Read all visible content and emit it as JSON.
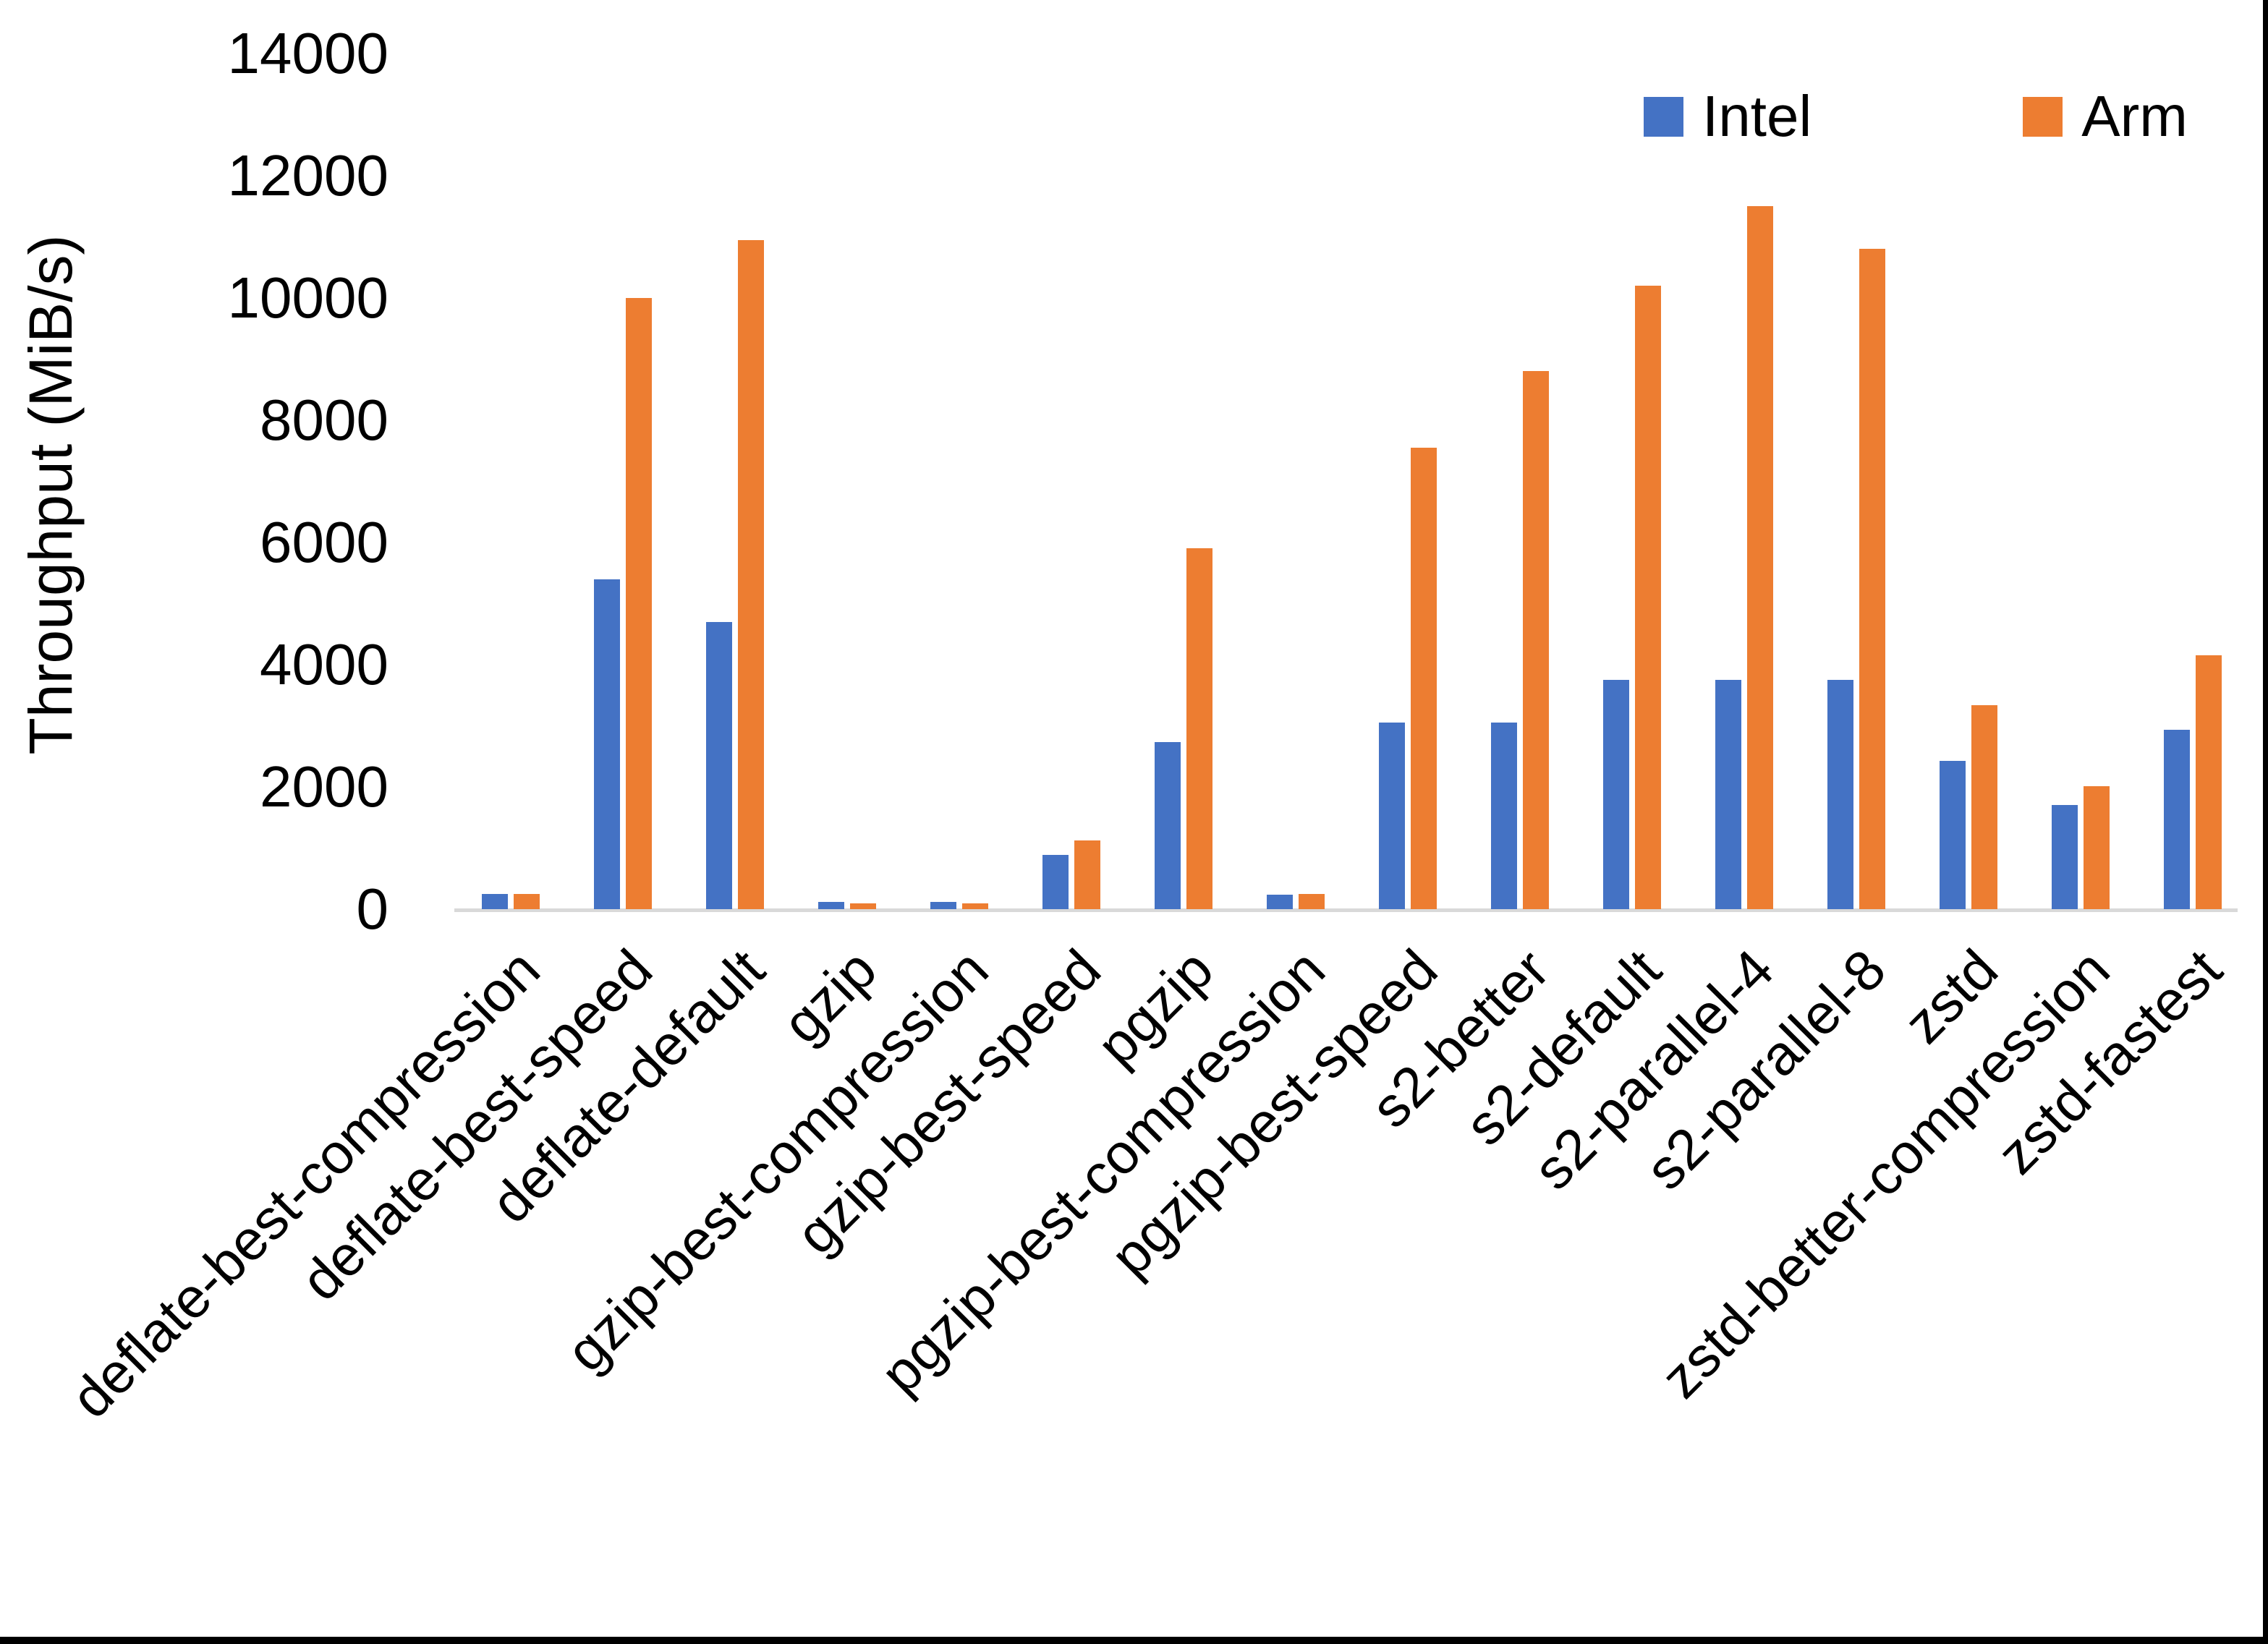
{
  "chart_data": {
    "type": "bar",
    "title": "",
    "xlabel": "",
    "ylabel": "Throughput (MiB/s)",
    "ylim": [
      0,
      14000
    ],
    "y_tick_step": 2000,
    "y_tick_labels": [
      "0",
      "2000",
      "4000",
      "6000",
      "8000",
      "10000",
      "12000",
      "14000"
    ],
    "grid": false,
    "legend_position": "top-right",
    "categories": [
      "deflate-best-compression",
      "deflate-best-speed",
      "deflate-default",
      "gzip",
      "gzip-best-compression",
      "gzip-best-speed",
      "pgzip",
      "pgzip-best-compression",
      "pgzip-best-speed",
      "s2-better",
      "s2-default",
      "s2-parallel-4",
      "s2-parallel-8",
      "zstd",
      "zstd-better-compression",
      "zstd-fastest"
    ],
    "series": [
      {
        "name": "Intel",
        "color": "#4472C4",
        "values": [
          250,
          5400,
          4700,
          120,
          120,
          890,
          2730,
          240,
          3050,
          3050,
          3750,
          3750,
          3750,
          2430,
          1710,
          2930
        ]
      },
      {
        "name": "Arm",
        "color": "#ED7D31",
        "values": [
          250,
          10000,
          10950,
          90,
          100,
          1120,
          5900,
          250,
          7550,
          8800,
          10200,
          11500,
          10800,
          3340,
          2010,
          4150
        ]
      }
    ]
  },
  "colors": {
    "axis_line": "#d9d9d9",
    "text": "#000000",
    "background": "#ffffff",
    "edge": "#000000"
  }
}
